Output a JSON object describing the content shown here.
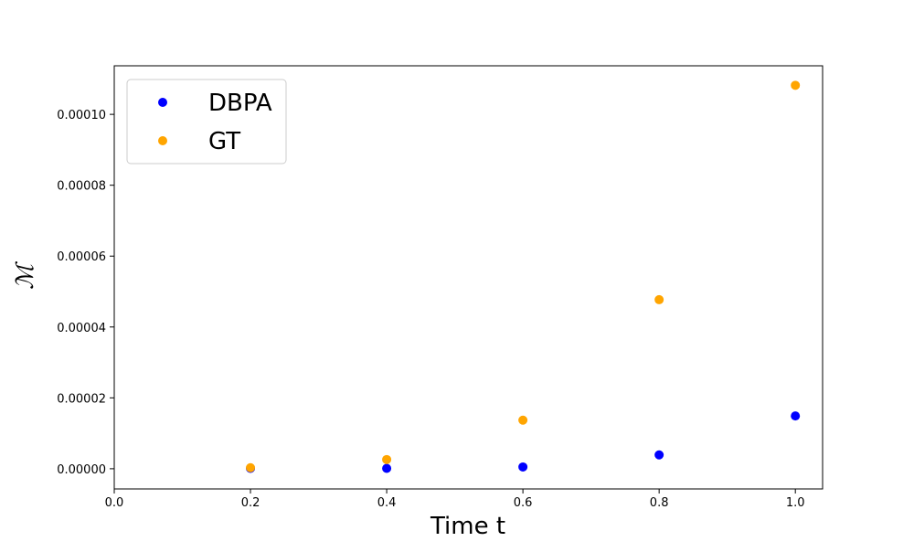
{
  "chart_data": {
    "type": "scatter",
    "x_label": "Time t",
    "y_label": "ℳ",
    "x": [
      0.2,
      0.4,
      0.6,
      0.8,
      1.0
    ],
    "series": [
      {
        "name": "DBPA",
        "color": "#0000ff",
        "values": [
          1e-07,
          1e-07,
          5e-07,
          3.9e-06,
          1.49e-05
        ]
      },
      {
        "name": "GT",
        "color": "#ffa500",
        "values": [
          3e-07,
          2.6e-06,
          1.37e-05,
          4.77e-05,
          0.0001082
        ]
      }
    ],
    "xlim": [
      0,
      1.04
    ],
    "xticks": [
      {
        "value": 0,
        "label": "0.0"
      },
      0.2,
      0.4,
      0.6,
      0.8,
      {
        "value": 1,
        "label": "1.0"
      }
    ],
    "ylim": [
      -5.7e-06,
      0.0001137
    ],
    "yticks": [
      {
        "value": 0,
        "label": "0.00000"
      },
      {
        "value": 2e-05,
        "label": "0.00002"
      },
      {
        "value": 4e-05,
        "label": "0.00004"
      },
      {
        "value": 6e-05,
        "label": "0.00006"
      },
      {
        "value": 8e-05,
        "label": "0.00008"
      },
      {
        "value": 0.0001,
        "label": "0.00010"
      }
    ],
    "grid": false,
    "legend": "upper left"
  }
}
